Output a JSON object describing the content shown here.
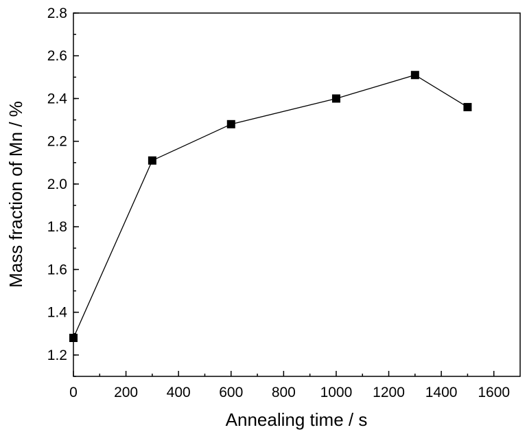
{
  "chart_data": {
    "type": "line",
    "title": "",
    "xlabel": "Annealing time / s",
    "ylabel": "Mass fraction of Mn / %",
    "xlim": [
      0,
      1700
    ],
    "ylim": [
      1.1,
      2.8
    ],
    "x_ticks": [
      0,
      200,
      400,
      600,
      800,
      1000,
      1200,
      1400,
      1600
    ],
    "y_ticks": [
      1.2,
      1.4,
      1.6,
      1.8,
      2.0,
      2.2,
      2.4,
      2.6,
      2.8
    ],
    "x_tick_labels": [
      "0",
      "200",
      "400",
      "600",
      "800",
      "1000",
      "1200",
      "1400",
      "1600"
    ],
    "y_tick_labels": [
      "1.2",
      "1.4",
      "1.6",
      "1.8",
      "2.0",
      "2.2",
      "2.4",
      "2.6",
      "2.8"
    ],
    "grid": false,
    "legend": "none",
    "series": [
      {
        "x": [
          0,
          300,
          600,
          1000,
          1300,
          1500
        ],
        "y": [
          1.28,
          2.11,
          2.28,
          2.4,
          2.51,
          2.36
        ],
        "marker": "square",
        "color": "#000000"
      }
    ]
  }
}
